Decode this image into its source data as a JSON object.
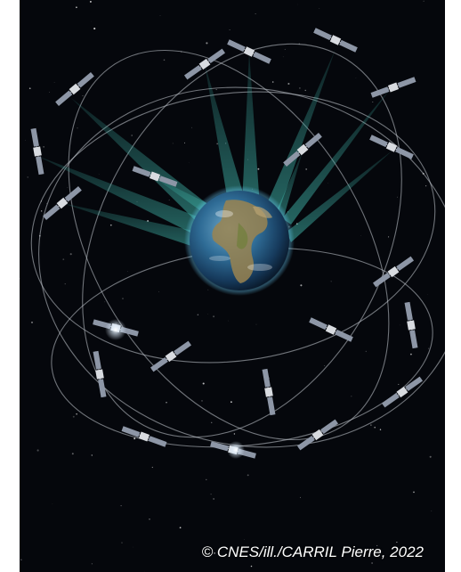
{
  "photo": {
    "subject": "",
    "credit": "© CNES/ill./CARRIL Pierre, 2022"
  },
  "colors": {
    "background": "#05070c",
    "frame": "#ffffff",
    "beam": "#3fb3a8",
    "orbit": "#c9ced6",
    "credit_text": "#ffffff"
  }
}
